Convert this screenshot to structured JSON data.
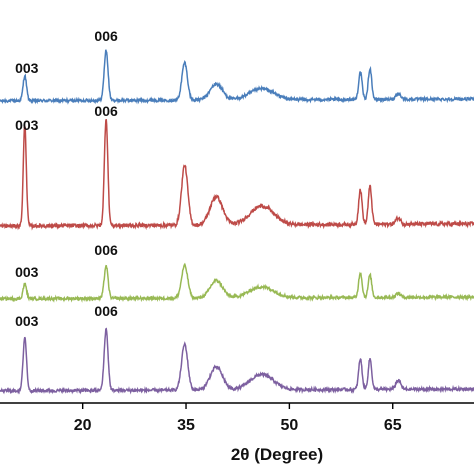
{
  "chart_data": {
    "type": "line",
    "xlabel": "2θ (Degree)",
    "x_ticks": [
      20,
      35,
      50,
      65
    ],
    "x_range": [
      8,
      79
    ],
    "grid": false,
    "legend": "none",
    "series": [
      {
        "color": "#4a7ebb",
        "baseline": 0.5,
        "annotations": [
          {
            "label": "003",
            "x": 11.6
          },
          {
            "label": "006",
            "x": 23.4
          }
        ],
        "peaks": [
          {
            "x": 11.6,
            "h": 0.5,
            "w": 0.25
          },
          {
            "x": 23.4,
            "h": 1.0,
            "w": 0.28
          },
          {
            "x": 34.8,
            "h": 0.75,
            "w": 0.4
          },
          {
            "x": 39.4,
            "h": 0.32,
            "w": 0.9
          },
          {
            "x": 46.0,
            "h": 0.22,
            "w": 1.8
          },
          {
            "x": 60.3,
            "h": 0.55,
            "w": 0.25
          },
          {
            "x": 61.7,
            "h": 0.62,
            "w": 0.25
          },
          {
            "x": 65.8,
            "h": 0.12,
            "w": 0.35
          }
        ]
      },
      {
        "color": "#be4b48",
        "baseline": 0.5,
        "annotations": [
          {
            "label": "003",
            "x": 11.6
          },
          {
            "label": "006",
            "x": 23.4
          }
        ],
        "peaks": [
          {
            "x": 11.6,
            "h": 1.6,
            "w": 0.22
          },
          {
            "x": 23.4,
            "h": 1.7,
            "w": 0.25
          },
          {
            "x": 34.8,
            "h": 0.95,
            "w": 0.45
          },
          {
            "x": 39.4,
            "h": 0.45,
            "w": 0.9
          },
          {
            "x": 46.0,
            "h": 0.3,
            "w": 1.7
          },
          {
            "x": 60.3,
            "h": 0.55,
            "w": 0.25
          },
          {
            "x": 61.7,
            "h": 0.6,
            "w": 0.25
          },
          {
            "x": 65.8,
            "h": 0.1,
            "w": 0.35
          }
        ]
      },
      {
        "color": "#98b954",
        "baseline": 0.5,
        "annotations": [
          {
            "label": "003",
            "x": 11.6
          },
          {
            "label": "006",
            "x": 23.4
          }
        ],
        "peaks": [
          {
            "x": 11.6,
            "h": 0.3,
            "w": 0.25
          },
          {
            "x": 23.4,
            "h": 0.65,
            "w": 0.28
          },
          {
            "x": 34.8,
            "h": 0.65,
            "w": 0.45
          },
          {
            "x": 39.4,
            "h": 0.35,
            "w": 0.9
          },
          {
            "x": 46.0,
            "h": 0.22,
            "w": 1.8
          },
          {
            "x": 60.3,
            "h": 0.5,
            "w": 0.25
          },
          {
            "x": 61.7,
            "h": 0.45,
            "w": 0.25
          },
          {
            "x": 65.8,
            "h": 0.08,
            "w": 0.35
          }
        ]
      },
      {
        "color": "#7d60a0",
        "baseline": 0.5,
        "annotations": [
          {
            "label": "003",
            "x": 11.6
          },
          {
            "label": "006",
            "x": 23.4
          }
        ],
        "peaks": [
          {
            "x": 11.6,
            "h": 1.05,
            "w": 0.25
          },
          {
            "x": 23.4,
            "h": 1.2,
            "w": 0.28
          },
          {
            "x": 34.8,
            "h": 0.9,
            "w": 0.45
          },
          {
            "x": 39.4,
            "h": 0.45,
            "w": 0.9
          },
          {
            "x": 46.0,
            "h": 0.3,
            "w": 1.7
          },
          {
            "x": 60.3,
            "h": 0.6,
            "w": 0.25
          },
          {
            "x": 61.7,
            "h": 0.6,
            "w": 0.25
          },
          {
            "x": 65.8,
            "h": 0.18,
            "w": 0.35
          }
        ]
      }
    ]
  }
}
